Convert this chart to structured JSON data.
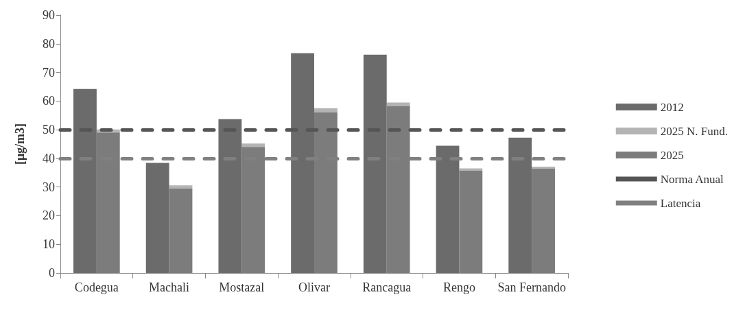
{
  "chart_data": {
    "type": "bar",
    "ylabel": "[μg/m3]",
    "categories": [
      "Codegua",
      "Machali",
      "Mostazal",
      "Olivar",
      "Rancagua",
      "Rengo",
      "San Fernando"
    ],
    "series": [
      {
        "name": "2012",
        "color": "#6b6b6b",
        "values": [
          64.2,
          38.4,
          53.7,
          76.7,
          76.2,
          44.4,
          47.2
        ]
      },
      {
        "name": "2025 N. Fund.",
        "color": "#b4b4b4",
        "values": [
          1.1,
          1.1,
          1.2,
          1.5,
          1.2,
          0.8,
          0.7
        ],
        "base": [
          49,
          29.5,
          44,
          56,
          58.3,
          35.7,
          36.4
        ]
      },
      {
        "name": "2025",
        "color": "#7c7c7c",
        "values": [
          49,
          29.5,
          44,
          56,
          58.3,
          35.7,
          36.4
        ]
      }
    ],
    "ref_lines": [
      {
        "axis": "y",
        "value": 50,
        "label": "Norma Anual",
        "color": "#555555",
        "line_style": "dashed"
      },
      {
        "axis": "y",
        "value": 40,
        "label": "Latencia",
        "color": "#808080",
        "line_style": "dashed"
      }
    ],
    "ylim": [
      0,
      90
    ],
    "yticks": [
      0,
      10,
      20,
      30,
      40,
      50,
      60,
      70,
      80,
      90
    ],
    "grid": false,
    "legend": "right"
  }
}
